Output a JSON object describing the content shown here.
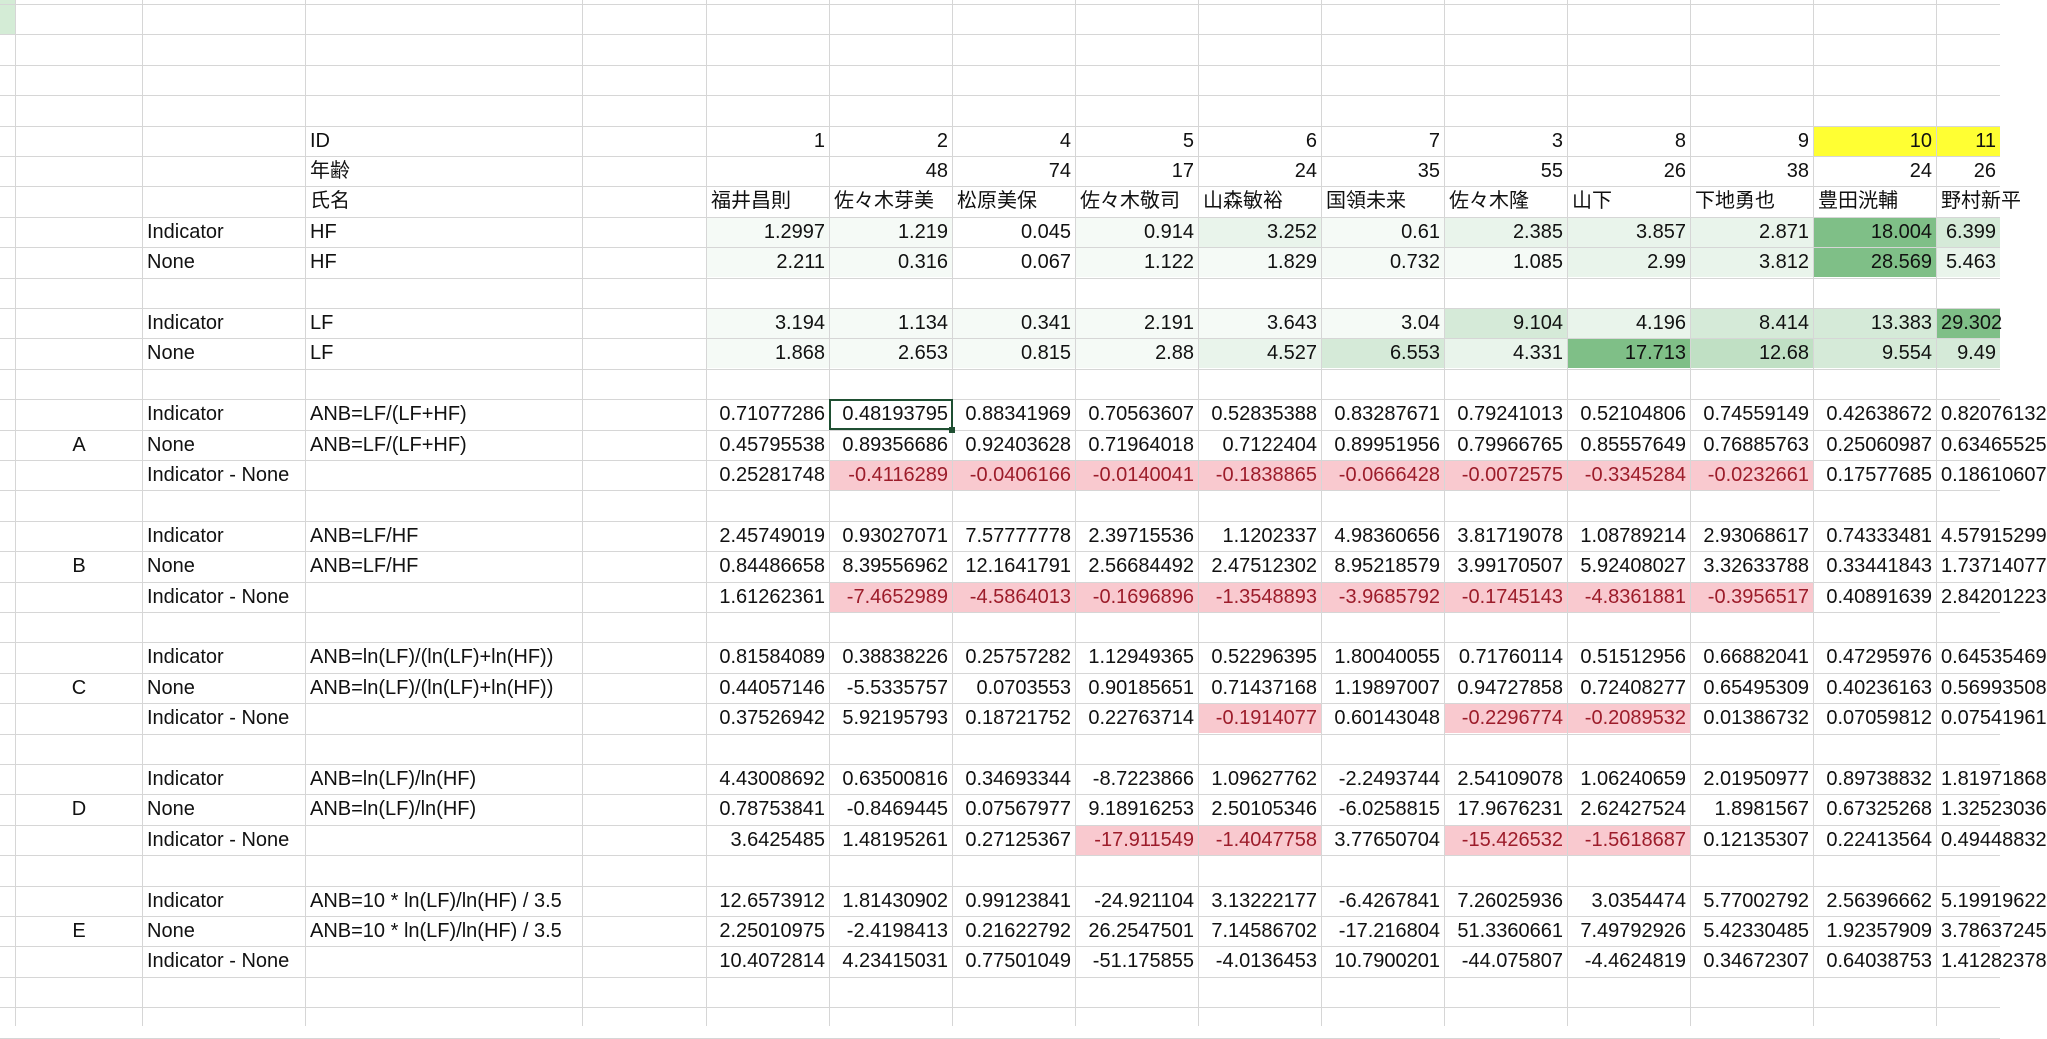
{
  "colors": {
    "yellow": "#ffff33",
    "red_bg": "#f9c9cf",
    "red_fg": "#9c1c2a",
    "greens": [
      "#ffffff",
      "#f5faf6",
      "#e9f4eb",
      "#d5ead8",
      "#c0e0c4",
      "#a5d3aa",
      "#7fbf87"
    ]
  },
  "headers": {
    "id_label": "ID",
    "ids": [
      "1",
      "2",
      "4",
      "5",
      "6",
      "7",
      "3",
      "8",
      "9",
      "10",
      "11"
    ],
    "age_label": "年齢",
    "ages": [
      "",
      "48",
      "74",
      "17",
      "24",
      "35",
      "55",
      "26",
      "38",
      "24",
      "26"
    ],
    "name_label": "氏名",
    "names": [
      "福井昌則",
      "佐々木芽美",
      "松原美保",
      "佐々木敬司",
      "山森敏裕",
      "国領未来",
      "佐々木隆",
      "山下",
      "下地勇也",
      "豊田洸輔",
      "野村新平"
    ]
  },
  "rows": [
    {
      "row": 7,
      "label": "Indicator",
      "formula": "HF",
      "values": [
        "1.2997",
        "1.219",
        "0.045",
        "0.914",
        "3.252",
        "0.61",
        "2.385",
        "3.857",
        "2.871",
        "18.004",
        "6.399"
      ],
      "fill": "g",
      "levels": [
        1,
        1,
        0,
        1,
        2,
        1,
        2,
        2,
        2,
        6,
        3
      ]
    },
    {
      "row": 8,
      "label": "None",
      "formula": "HF",
      "values": [
        "2.211",
        "0.316",
        "0.067",
        "1.122",
        "1.829",
        "0.732",
        "1.085",
        "2.99",
        "3.812",
        "28.569",
        "5.463"
      ],
      "fill": "g",
      "levels": [
        1,
        1,
        0,
        1,
        1,
        1,
        1,
        2,
        2,
        6,
        2
      ]
    },
    {
      "row": 10,
      "label": "Indicator",
      "formula": "LF",
      "values": [
        "3.194",
        "1.134",
        "0.341",
        "2.191",
        "3.643",
        "3.04",
        "9.104",
        "4.196",
        "8.414",
        "13.383",
        "29.302"
      ],
      "fill": "g",
      "levels": [
        1,
        1,
        1,
        1,
        1,
        1,
        3,
        2,
        3,
        3,
        6
      ]
    },
    {
      "row": 11,
      "label": "None",
      "formula": "LF",
      "values": [
        "1.868",
        "2.653",
        "0.815",
        "2.88",
        "4.527",
        "6.553",
        "4.331",
        "17.713",
        "12.68",
        "9.554",
        "9.49"
      ],
      "fill": "g",
      "levels": [
        1,
        1,
        1,
        1,
        2,
        3,
        2,
        6,
        4,
        3,
        3
      ]
    },
    {
      "row": 13,
      "label": "Indicator",
      "formula": "ANB=LF/(LF+HF)",
      "values": [
        "0.71077286",
        "0.48193795",
        "0.88341969",
        "0.70563607",
        "0.52835388",
        "0.83287671",
        "0.79241013",
        "0.52104806",
        "0.74559149",
        "0.42638672",
        "0.82076132"
      ]
    },
    {
      "row": 14,
      "label": "None",
      "formula": "ANB=LF/(LF+HF)",
      "values": [
        "0.45795538",
        "0.89356686",
        "0.92403628",
        "0.71964018",
        "0.7122404",
        "0.89951956",
        "0.79966765",
        "0.85557649",
        "0.76885763",
        "0.25060987",
        "0.63465525"
      ]
    },
    {
      "row": 15,
      "label": "Indicator - None",
      "formula": "",
      "values": [
        "0.25281748",
        "-0.4116289",
        "-0.0406166",
        "-0.0140041",
        "-0.1838865",
        "-0.0666428",
        "-0.0072575",
        "-0.3345284",
        "-0.0232661",
        "0.17577685",
        "0.18610607"
      ],
      "fill": "r"
    },
    {
      "row": 17,
      "label": "Indicator",
      "formula": "ANB=LF/HF",
      "values": [
        "2.45749019",
        "0.93027071",
        "7.57777778",
        "2.39715536",
        "1.1202337",
        "4.98360656",
        "3.81719078",
        "1.08789214",
        "2.93068617",
        "0.74333481",
        "4.57915299"
      ]
    },
    {
      "row": 18,
      "label": "None",
      "formula": "ANB=LF/HF",
      "values": [
        "0.84486658",
        "8.39556962",
        "12.1641791",
        "2.56684492",
        "2.47512302",
        "8.95218579",
        "3.99170507",
        "5.92408027",
        "3.32633788",
        "0.33441843",
        "1.73714077"
      ]
    },
    {
      "row": 19,
      "label": "Indicator - None",
      "formula": "",
      "values": [
        "1.61262361",
        "-7.4652989",
        "-4.5864013",
        "-0.1696896",
        "-1.3548893",
        "-3.9685792",
        "-0.1745143",
        "-4.8361881",
        "-0.3956517",
        "0.40891639",
        "2.84201223"
      ],
      "fill": "r"
    },
    {
      "row": 21,
      "label": "Indicator",
      "formula": "ANB=ln(LF)/(ln(LF)+ln(HF))",
      "values": [
        "0.81584089",
        "0.38838226",
        "0.25757282",
        "1.12949365",
        "0.52296395",
        "1.80040055",
        "0.71760114",
        "0.51512956",
        "0.66882041",
        "0.47295976",
        "0.64535469"
      ]
    },
    {
      "row": 22,
      "label": "None",
      "formula": "ANB=ln(LF)/(ln(LF)+ln(HF))",
      "values": [
        "0.44057146",
        "-5.5335757",
        "0.0703553",
        "0.90185651",
        "0.71437168",
        "1.19897007",
        "0.94727858",
        "0.72408277",
        "0.65495309",
        "0.40236163",
        "0.56993508"
      ]
    },
    {
      "row": 23,
      "label": "Indicator - None",
      "formula": "",
      "values": [
        "0.37526942",
        "5.92195793",
        "0.18721752",
        "0.22763714",
        "-0.1914077",
        "0.60143048",
        "-0.2296774",
        "-0.2089532",
        "0.01386732",
        "0.07059812",
        "0.07541961"
      ],
      "fill": "r"
    },
    {
      "row": 25,
      "label": "Indicator",
      "formula": "ANB=ln(LF)/ln(HF)",
      "values": [
        "4.43008692",
        "0.63500816",
        "0.34693344",
        "-8.7223866",
        "1.09627762",
        "-2.2493744",
        "2.54109078",
        "1.06240659",
        "2.01950977",
        "0.89738832",
        "1.81971868"
      ]
    },
    {
      "row": 26,
      "label": "None",
      "formula": "ANB=ln(LF)/ln(HF)",
      "values": [
        "0.78753841",
        "-0.8469445",
        "0.07567977",
        "9.18916253",
        "2.50105346",
        "-6.0258815",
        "17.9676231",
        "2.62427524",
        "1.8981567",
        "0.67325268",
        "1.32523036"
      ]
    },
    {
      "row": 27,
      "label": "Indicator - None",
      "formula": "",
      "values": [
        "3.6425485",
        "1.48195261",
        "0.27125367",
        "-17.911549",
        "-1.4047758",
        "3.77650704",
        "-15.426532",
        "-1.5618687",
        "0.12135307",
        "0.22413564",
        "0.49448832"
      ],
      "fill": "r"
    },
    {
      "row": 29,
      "label": "Indicator",
      "formula": "ANB=10 * ln(LF)/ln(HF) / 3.5",
      "values": [
        "12.6573912",
        "1.81430902",
        "0.99123841",
        "-24.921104",
        "3.13222177",
        "-6.4267841",
        "7.26025936",
        "3.0354474",
        "5.77002792",
        "2.56396662",
        "5.19919622"
      ]
    },
    {
      "row": 30,
      "label": "None",
      "formula": "ANB=10 * ln(LF)/ln(HF) / 3.5",
      "values": [
        "2.25010975",
        "-2.4198413",
        "0.21622792",
        "26.2547501",
        "7.14586702",
        "-17.216804",
        "51.3360661",
        "7.49792926",
        "5.42330485",
        "1.92357909",
        "3.78637245"
      ]
    },
    {
      "row": 31,
      "label": "Indicator - None",
      "formula": "",
      "values": [
        "10.4072814",
        "4.23415031",
        "0.77501049",
        "-51.175855",
        "-4.0136453",
        "10.7900201",
        "-44.075807",
        "-4.4624819",
        "0.34672307",
        "0.64038753",
        "1.41282378"
      ]
    }
  ],
  "group_labels": [
    {
      "row": 14,
      "text": "A"
    },
    {
      "row": 18,
      "text": "B"
    },
    {
      "row": 22,
      "text": "C"
    },
    {
      "row": 26,
      "text": "D"
    },
    {
      "row": 30,
      "text": "E"
    }
  ]
}
